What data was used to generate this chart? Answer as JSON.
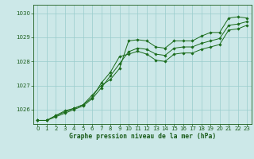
{
  "title": "Graphe pression niveau de la mer (hPa)",
  "ylim": [
    1025.4,
    1030.35
  ],
  "xlim": [
    -0.5,
    23.5
  ],
  "yticks": [
    1026,
    1027,
    1028,
    1029,
    1030
  ],
  "xticks": [
    0,
    1,
    2,
    3,
    4,
    5,
    6,
    7,
    8,
    9,
    10,
    11,
    12,
    13,
    14,
    15,
    16,
    17,
    18,
    19,
    20,
    21,
    22,
    23
  ],
  "background_color": "#cce8e8",
  "grid_color": "#99cccc",
  "line_color": "#1a6b1a",
  "marker_color": "#1a6b1a",
  "text_color": "#1a5c1a",
  "series1_x": [
    0,
    1,
    2,
    3,
    4,
    5,
    6,
    7,
    8,
    9,
    10,
    11,
    12,
    13,
    14,
    15,
    16,
    17,
    18,
    19,
    20,
    21,
    22,
    23
  ],
  "series1_y": [
    1025.55,
    1025.55,
    1025.75,
    1025.95,
    1026.05,
    1026.2,
    1026.6,
    1027.0,
    1027.25,
    1027.7,
    1028.85,
    1028.9,
    1028.85,
    1028.6,
    1028.55,
    1028.85,
    1028.85,
    1028.85,
    1029.05,
    1029.2,
    1029.2,
    1029.8,
    1029.85,
    1029.8
  ],
  "series2_x": [
    0,
    1,
    2,
    3,
    4,
    5,
    6,
    7,
    8,
    9,
    10,
    11,
    12,
    13,
    14,
    15,
    16,
    17,
    18,
    19,
    20,
    21,
    22,
    23
  ],
  "series2_y": [
    1025.55,
    1025.55,
    1025.75,
    1025.9,
    1026.05,
    1026.2,
    1026.5,
    1027.1,
    1027.55,
    1028.2,
    1028.3,
    1028.42,
    1028.3,
    1028.05,
    1028.0,
    1028.3,
    1028.35,
    1028.35,
    1028.5,
    1028.6,
    1028.7,
    1029.3,
    1029.35,
    1029.5
  ],
  "series3_x": [
    0,
    1,
    2,
    3,
    4,
    5,
    6,
    7,
    8,
    9,
    10,
    11,
    12,
    13,
    14,
    15,
    16,
    17,
    18,
    19,
    20,
    21,
    22,
    23
  ],
  "series3_y": [
    1025.55,
    1025.55,
    1025.7,
    1025.85,
    1026.0,
    1026.15,
    1026.45,
    1026.9,
    1027.4,
    1027.9,
    1028.4,
    1028.55,
    1028.5,
    1028.3,
    1028.25,
    1028.55,
    1028.6,
    1028.6,
    1028.75,
    1028.85,
    1028.95,
    1029.5,
    1029.55,
    1029.65
  ]
}
